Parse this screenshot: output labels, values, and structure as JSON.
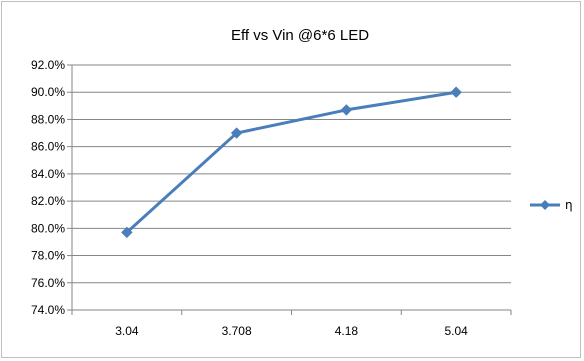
{
  "chart_data": {
    "type": "line",
    "title": "Eff  vs Vin @6*6 LED",
    "xlabel": "",
    "ylabel": "",
    "categories": [
      "3.04",
      "3.708",
      "4.18",
      "5.04"
    ],
    "series": [
      {
        "name": "η",
        "values": [
          79.7,
          87.0,
          88.7,
          90.0
        ],
        "color": "#4a7ebb",
        "marker": "diamond"
      }
    ],
    "ylim": [
      74.0,
      92.0
    ],
    "ytick_step": 2.0,
    "ytick_format": "percent-1dp",
    "yticks": [
      "74.0%",
      "76.0%",
      "78.0%",
      "80.0%",
      "82.0%",
      "84.0%",
      "86.0%",
      "88.0%",
      "90.0%",
      "92.0%"
    ],
    "grid": "horizontal",
    "legend": "right",
    "colors": {
      "grid": "#868686",
      "axis": "#868686",
      "border": "#bfbfbf"
    }
  }
}
